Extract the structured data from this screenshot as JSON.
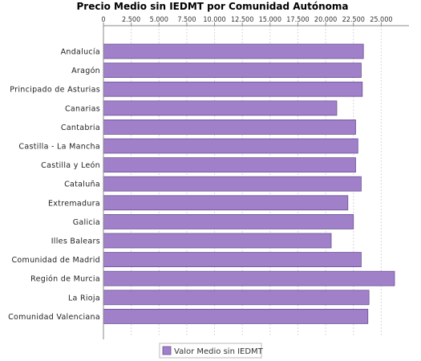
{
  "chart_data": {
    "type": "bar",
    "orientation": "horizontal",
    "title": "Precio Medio sin IEDMT por Comunidad Autónoma",
    "categories": [
      "Andalucía",
      "Aragón",
      "Principado de Asturias",
      "Canarias",
      "Cantabria",
      "Castilla - La Mancha",
      "Castilla y León",
      "Cataluña",
      "Extremadura",
      "Galicia",
      "Illes Balears",
      "Comunidad de Madrid",
      "Región de Murcia",
      "La Rioja",
      "Comunidad Valenciana"
    ],
    "series": [
      {
        "name": "Valor Medio sin IEDMT",
        "values": [
          23400,
          23200,
          23300,
          21000,
          22700,
          22900,
          22700,
          23200,
          22000,
          22500,
          20500,
          23200,
          26200,
          23900,
          23800
        ],
        "color": "#a080c8"
      }
    ],
    "xlim": [
      0,
      27500
    ],
    "xticks": [
      0,
      2500,
      5000,
      7500,
      10000,
      12500,
      15000,
      17500,
      20000,
      22500,
      25000
    ],
    "xtick_labels": [
      "0",
      "2.500",
      "5.000",
      "7.500",
      "10.000",
      "12.500",
      "15.000",
      "17.500",
      "20.000",
      "22.500",
      "25.000"
    ],
    "xaxis_position": "top",
    "grid": "vertical-dashed",
    "legend_position": "bottom-center"
  }
}
